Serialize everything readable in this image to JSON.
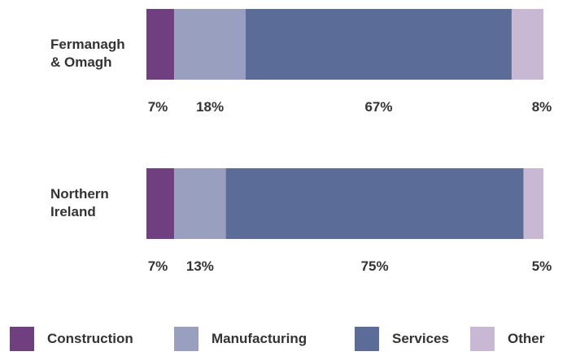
{
  "chart_data": {
    "type": "bar",
    "orientation": "horizontal",
    "stacked": true,
    "unit": "%",
    "categories": [
      "Fermanagh\n& Omagh",
      "Northern\nIreland"
    ],
    "series": [
      {
        "name": "Construction",
        "color": "#6f3f7f",
        "values": [
          7,
          7
        ]
      },
      {
        "name": "Manufacturing",
        "color": "#99a0bf",
        "values": [
          18,
          13
        ]
      },
      {
        "name": "Services",
        "color": "#5b6c99",
        "values": [
          67,
          75
        ]
      },
      {
        "name": "Other",
        "color": "#c9b8d3",
        "values": [
          8,
          5
        ]
      }
    ],
    "xlim": [
      0,
      100
    ],
    "grid": false,
    "legend_position": "bottom"
  }
}
